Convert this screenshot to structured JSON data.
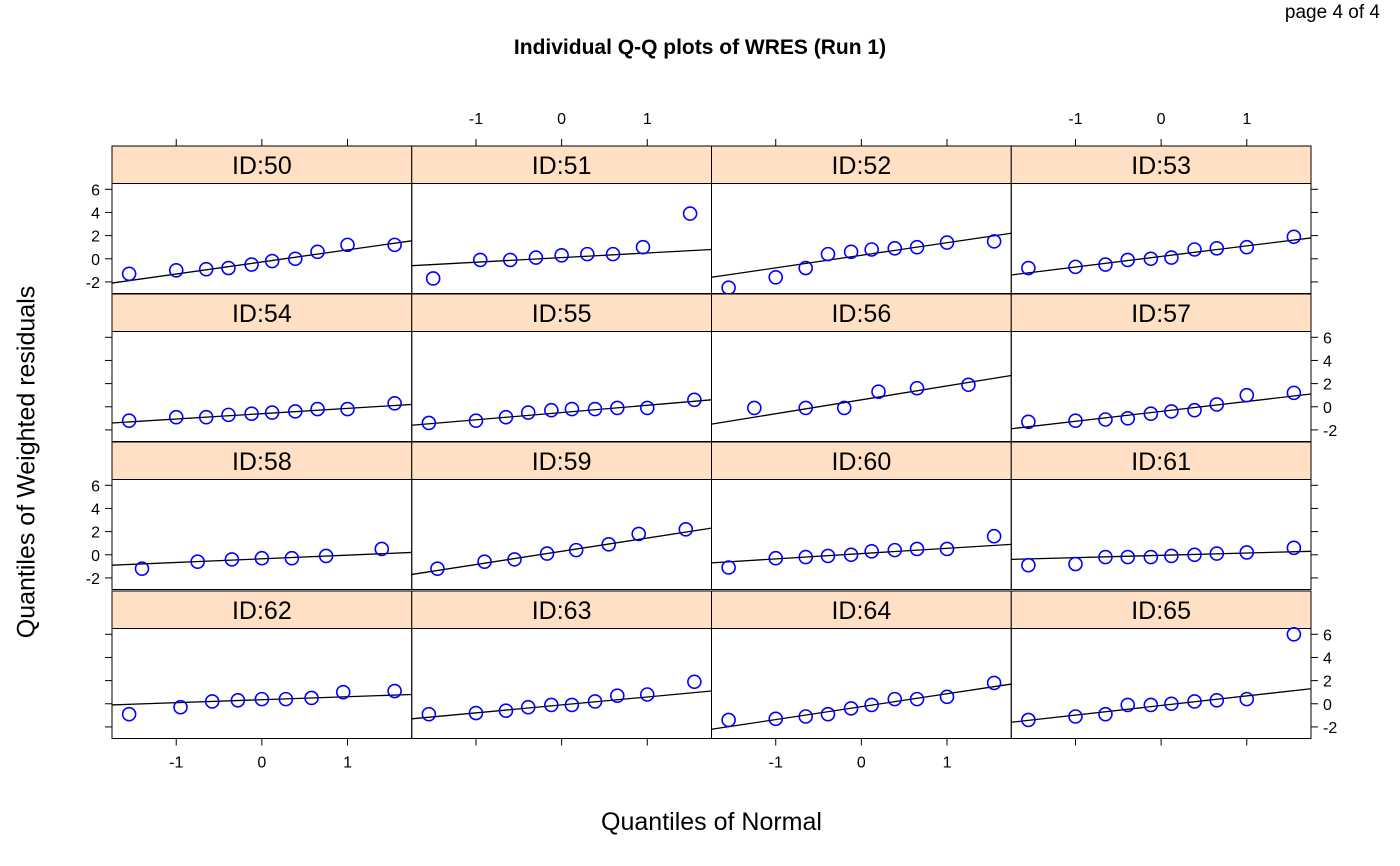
{
  "page_indicator": "page 4 of 4",
  "colors": {
    "strip": "#ffe0c4",
    "points": "#0000ff",
    "line": "#000000",
    "axes": "#000000"
  },
  "chart_data": {
    "type": "scatter",
    "title": "Individual Q-Q plots of WRES (Run 1)",
    "xlabel": "Quantiles of Normal",
    "ylabel": "Quantiles of Weighted residuals",
    "xlim": [
      -1.75,
      1.75
    ],
    "ylim": [
      -3.0,
      6.5
    ],
    "xticks": [
      -1,
      0,
      1
    ],
    "yticks": [
      -2,
      0,
      2,
      4,
      6
    ],
    "layout": {
      "columns": 4,
      "rows": 4
    },
    "panels": [
      {
        "id": "ID:50",
        "x": [
          -1.55,
          -1.0,
          -0.65,
          -0.39,
          -0.12,
          0.12,
          0.39,
          0.65,
          1.0,
          1.55
        ],
        "y": [
          -1.3,
          -1.0,
          -0.9,
          -0.8,
          -0.5,
          -0.2,
          0.0,
          0.6,
          1.2,
          1.2
        ],
        "line": [
          -1.75,
          -2.1,
          1.75,
          1.55
        ]
      },
      {
        "id": "ID:51",
        "x": [
          -1.5,
          -0.95,
          -0.6,
          -0.3,
          0.0,
          0.3,
          0.6,
          0.95,
          1.5
        ],
        "y": [
          -1.7,
          -0.1,
          -0.1,
          0.1,
          0.3,
          0.4,
          0.4,
          1.0,
          3.9
        ],
        "line": [
          -1.75,
          -0.6,
          1.75,
          0.8
        ]
      },
      {
        "id": "ID:52",
        "x": [
          -1.55,
          -1.0,
          -0.65,
          -0.39,
          -0.12,
          0.12,
          0.39,
          0.65,
          1.0,
          1.55
        ],
        "y": [
          -2.5,
          -1.6,
          -0.8,
          0.4,
          0.6,
          0.8,
          0.9,
          1.0,
          1.4,
          1.5
        ],
        "line": [
          -1.75,
          -1.6,
          1.75,
          2.2
        ]
      },
      {
        "id": "ID:53",
        "x": [
          -1.55,
          -1.0,
          -0.65,
          -0.39,
          -0.12,
          0.12,
          0.39,
          0.65,
          1.0,
          1.55
        ],
        "y": [
          -0.8,
          -0.7,
          -0.5,
          -0.1,
          0.0,
          0.1,
          0.8,
          0.9,
          1.0,
          1.9
        ],
        "line": [
          -1.75,
          -1.4,
          1.75,
          1.8
        ]
      },
      {
        "id": "ID:54",
        "x": [
          -1.55,
          -1.0,
          -0.65,
          -0.39,
          -0.12,
          0.12,
          0.39,
          0.65,
          1.0,
          1.55
        ],
        "y": [
          -1.2,
          -0.9,
          -0.9,
          -0.7,
          -0.6,
          -0.5,
          -0.4,
          -0.2,
          -0.2,
          0.3
        ],
        "line": [
          -1.75,
          -1.4,
          1.75,
          0.2
        ]
      },
      {
        "id": "ID:55",
        "x": [
          -1.55,
          -1.0,
          -0.65,
          -0.39,
          -0.12,
          0.12,
          0.39,
          0.65,
          1.0,
          1.55
        ],
        "y": [
          -1.4,
          -1.2,
          -0.9,
          -0.5,
          -0.3,
          -0.2,
          -0.2,
          -0.1,
          -0.1,
          0.6
        ],
        "line": [
          -1.75,
          -1.6,
          1.75,
          0.6
        ]
      },
      {
        "id": "ID:56",
        "x": [
          -1.25,
          -0.65,
          -0.2,
          0.2,
          0.65,
          1.25
        ],
        "y": [
          -0.1,
          -0.1,
          -0.1,
          1.3,
          1.6,
          1.9
        ],
        "line": [
          -1.75,
          -1.5,
          1.75,
          2.7
        ]
      },
      {
        "id": "ID:57",
        "x": [
          -1.55,
          -1.0,
          -0.65,
          -0.39,
          -0.12,
          0.12,
          0.39,
          0.65,
          1.0,
          1.55
        ],
        "y": [
          -1.3,
          -1.2,
          -1.1,
          -1.0,
          -0.6,
          -0.4,
          -0.3,
          0.2,
          1.0,
          1.2
        ],
        "line": [
          -1.75,
          -1.9,
          1.75,
          1.1
        ]
      },
      {
        "id": "ID:58",
        "x": [
          -1.4,
          -0.75,
          -0.35,
          0.0,
          0.35,
          0.75,
          1.4
        ],
        "y": [
          -1.2,
          -0.6,
          -0.4,
          -0.3,
          -0.3,
          -0.1,
          0.5
        ],
        "line": [
          -1.75,
          -0.9,
          1.75,
          0.2
        ]
      },
      {
        "id": "ID:59",
        "x": [
          -1.45,
          -0.9,
          -0.55,
          -0.17,
          0.17,
          0.55,
          0.9,
          1.45
        ],
        "y": [
          -1.2,
          -0.6,
          -0.4,
          0.1,
          0.4,
          0.9,
          1.8,
          2.2
        ],
        "line": [
          -1.75,
          -1.7,
          1.75,
          2.3
        ]
      },
      {
        "id": "ID:60",
        "x": [
          -1.55,
          -1.0,
          -0.65,
          -0.39,
          -0.12,
          0.12,
          0.39,
          0.65,
          1.0,
          1.55
        ],
        "y": [
          -1.1,
          -0.3,
          -0.2,
          -0.1,
          0.0,
          0.3,
          0.4,
          0.5,
          0.5,
          1.6
        ],
        "line": [
          -1.75,
          -0.7,
          1.75,
          0.9
        ]
      },
      {
        "id": "ID:61",
        "x": [
          -1.55,
          -1.0,
          -0.65,
          -0.39,
          -0.12,
          0.12,
          0.39,
          0.65,
          1.0,
          1.55
        ],
        "y": [
          -0.9,
          -0.8,
          -0.2,
          -0.2,
          -0.2,
          -0.1,
          0.0,
          0.1,
          0.2,
          0.6
        ],
        "line": [
          -1.75,
          -0.4,
          1.75,
          0.3
        ]
      },
      {
        "id": "ID:62",
        "x": [
          -1.55,
          -0.95,
          -0.58,
          -0.28,
          0.0,
          0.28,
          0.58,
          0.95,
          1.55
        ],
        "y": [
          -0.9,
          -0.3,
          0.2,
          0.3,
          0.4,
          0.4,
          0.5,
          1.0,
          1.1
        ],
        "line": [
          -1.75,
          -0.1,
          1.75,
          0.8
        ]
      },
      {
        "id": "ID:63",
        "x": [
          -1.55,
          -1.0,
          -0.65,
          -0.39,
          -0.12,
          0.12,
          0.39,
          0.65,
          1.0,
          1.55
        ],
        "y": [
          -0.9,
          -0.8,
          -0.6,
          -0.3,
          -0.1,
          -0.1,
          0.2,
          0.7,
          0.8,
          1.9
        ],
        "line": [
          -1.75,
          -1.3,
          1.75,
          1.1
        ]
      },
      {
        "id": "ID:64",
        "x": [
          -1.55,
          -1.0,
          -0.65,
          -0.39,
          -0.12,
          0.12,
          0.39,
          0.65,
          1.0,
          1.55
        ],
        "y": [
          -1.4,
          -1.3,
          -1.1,
          -0.9,
          -0.4,
          -0.1,
          0.4,
          0.4,
          0.6,
          1.8
        ],
        "line": [
          -1.75,
          -2.2,
          1.75,
          1.7
        ]
      },
      {
        "id": "ID:65",
        "x": [
          -1.55,
          -1.0,
          -0.65,
          -0.39,
          -0.12,
          0.12,
          0.39,
          0.65,
          1.0,
          1.55
        ],
        "y": [
          -1.4,
          -1.1,
          -0.9,
          -0.1,
          -0.1,
          0.0,
          0.2,
          0.3,
          0.4,
          6.0
        ],
        "line": [
          -1.75,
          -1.6,
          1.75,
          1.3
        ]
      }
    ]
  }
}
